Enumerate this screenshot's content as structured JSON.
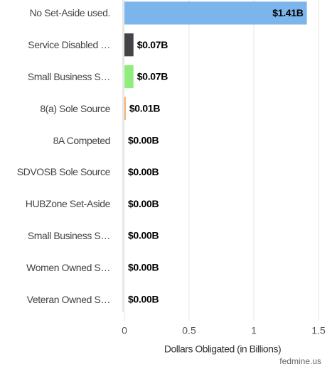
{
  "chart_data": {
    "type": "bar",
    "orientation": "horizontal",
    "categories": [
      "No Set-Aside used.",
      "Service Disabled …",
      "Small Business S…",
      "8(a) Sole Source",
      "8A Competed",
      "SDVOSB Sole Source",
      "HUBZone Set-Aside",
      "Small Business S…",
      "Women Owned S…",
      "Veteran Owned S…"
    ],
    "values": [
      1.41,
      0.07,
      0.07,
      0.01,
      0,
      0,
      0,
      0,
      0,
      0
    ],
    "value_labels": [
      "$1.41B",
      "$0.07B",
      "$0.07B",
      "$0.01B",
      "$0.00B",
      "$0.00B",
      "$0.00B",
      "$0.00B",
      "$0.00B",
      "$0.00B"
    ],
    "colors": [
      "#7cb5ec",
      "#434348",
      "#90ed7d",
      "#f7a35c",
      "#8085e9",
      "#f15c80",
      "#e4d354",
      "#2b908f",
      "#f45b5b",
      "#91e8e1"
    ],
    "xlim": [
      0,
      1.5
    ],
    "xticks": [
      0,
      0.5,
      1,
      1.5
    ],
    "grid": true,
    "x_label": "Dollars Obligated (in Billions)",
    "credit": "fedmine.us"
  }
}
